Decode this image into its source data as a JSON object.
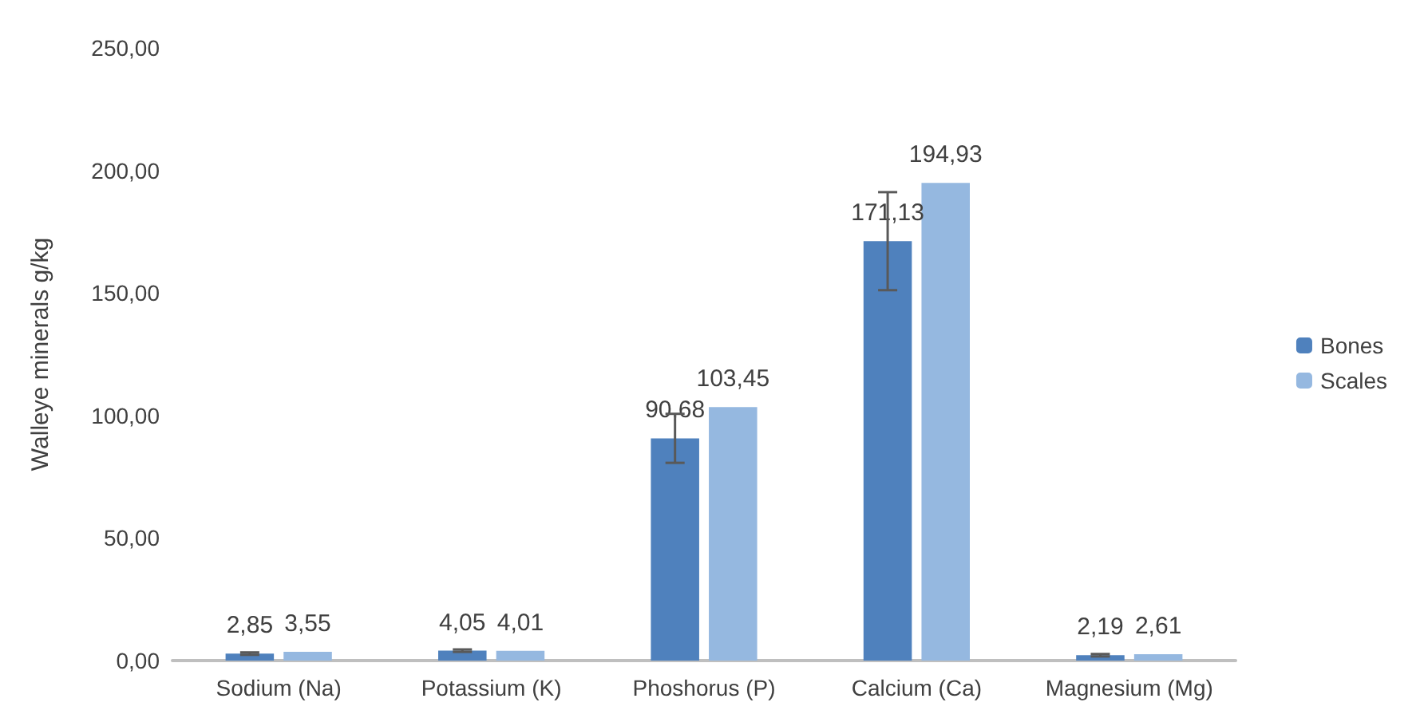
{
  "chart_data": {
    "type": "bar",
    "ylabel": "Walleye minerals g/kg",
    "categories": [
      "Sodium (Na)",
      "Potassium (K)",
      "Phoshorus (P)",
      "Calcium (Ca)",
      "Magnesium (Mg)"
    ],
    "series": [
      {
        "name": "Bones",
        "color": "#4f81bd",
        "values": [
          2.85,
          4.05,
          90.68,
          171.13,
          2.19
        ],
        "errors": [
          0.5,
          0.5,
          10,
          20,
          0.5
        ],
        "value_labels": [
          "2,85",
          "4,05",
          "90,68",
          "171,13",
          "2,19"
        ]
      },
      {
        "name": "Scales",
        "color": "#95b8e0",
        "values": [
          3.55,
          4.01,
          103.45,
          194.93,
          2.61
        ],
        "value_labels": [
          "3,55",
          "4,01",
          "103,45",
          "194,93",
          "2,61"
        ]
      }
    ],
    "ylim": [
      0,
      250
    ],
    "yticks": [
      {
        "value": 0,
        "label": "0,00"
      },
      {
        "value": 50,
        "label": "50,00"
      },
      {
        "value": 100,
        "label": "100,00"
      },
      {
        "value": 150,
        "label": "150,00"
      },
      {
        "value": 200,
        "label": "200,00"
      },
      {
        "value": 250,
        "label": "250,00"
      }
    ],
    "grid": false,
    "legend": "right"
  }
}
